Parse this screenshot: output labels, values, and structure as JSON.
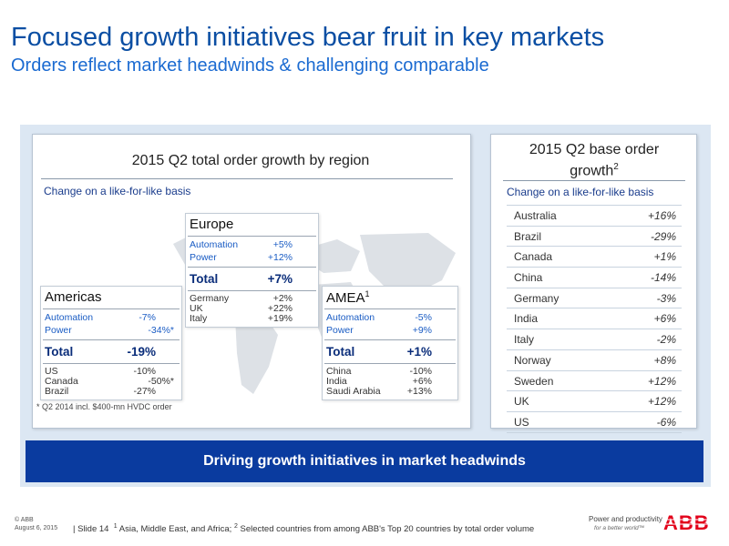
{
  "header": {
    "title": "Focused growth initiatives bear fruit in key markets",
    "subtitle": "Orders reflect market headwinds & challenging comparable"
  },
  "left_panel": {
    "title": "2015 Q2 total order growth by region",
    "note": "Change on a like-for-like basis",
    "footnote": "* Q2 2014 incl. $400-mn HVDC order"
  },
  "regions": {
    "europe": {
      "name": "Europe",
      "segments": [
        {
          "label": "Automation",
          "value": "+5%"
        },
        {
          "label": "Power",
          "value": "+12%"
        }
      ],
      "total": {
        "label": "Total",
        "value": "+7%"
      },
      "countries": [
        {
          "label": "Germany",
          "value": "+2%"
        },
        {
          "label": "UK",
          "value": "+22%"
        },
        {
          "label": "Italy",
          "value": "+19%"
        }
      ]
    },
    "americas": {
      "name": "Americas",
      "segments": [
        {
          "label": "Automation",
          "value": "-7%"
        },
        {
          "label": "Power",
          "value": "-34%*"
        }
      ],
      "total": {
        "label": "Total",
        "value": "-19%"
      },
      "countries": [
        {
          "label": "US",
          "value": "-10%"
        },
        {
          "label": "Canada",
          "value": "-50%*"
        },
        {
          "label": "Brazil",
          "value": "-27%"
        }
      ]
    },
    "amea": {
      "name": "AMEA",
      "name_sup": "1",
      "segments": [
        {
          "label": "Automation",
          "value": "-5%"
        },
        {
          "label": "Power",
          "value": "+9%"
        }
      ],
      "total": {
        "label": "Total",
        "value": "+1%"
      },
      "countries": [
        {
          "label": "China",
          "value": "-10%"
        },
        {
          "label": "India",
          "value": "+6%"
        },
        {
          "label": "Saudi Arabia",
          "value": "+13%"
        }
      ]
    }
  },
  "right_panel": {
    "title": "2015 Q2 base order growth",
    "title_sup": "2",
    "note": "Change on a like-for-like basis",
    "rows": [
      {
        "country": "Australia",
        "value": "+16%"
      },
      {
        "country": "Brazil",
        "value": "-29%"
      },
      {
        "country": "Canada",
        "value": "+1%"
      },
      {
        "country": "China",
        "value": "-14%"
      },
      {
        "country": "Germany",
        "value": "-3%"
      },
      {
        "country": "India",
        "value": "+6%"
      },
      {
        "country": "Italy",
        "value": "-2%"
      },
      {
        "country": "Norway",
        "value": "+8%"
      },
      {
        "country": "Sweden",
        "value": "+12%"
      },
      {
        "country": "UK",
        "value": "+12%"
      },
      {
        "country": "US",
        "value": "-6%"
      }
    ]
  },
  "banner": {
    "text": "Driving growth initiatives in market headwinds"
  },
  "footer": {
    "copyright": "© ABB",
    "date": "August 6, 2015",
    "slide": "| Slide 14",
    "footnote1_marker": "1",
    "footnote1": "Asia,  Middle East, and Africa;",
    "footnote2_marker": "2",
    "footnote2": "Selected countries from among ABB's Top 20 countries by total order volume",
    "tagline": "Power and productivity",
    "tagline2": "for a better world™",
    "logo_text": "ABB",
    "brand_color": "#e2001a"
  },
  "colors": {
    "title": "#0a4ea3",
    "banner": "#0a3b9f",
    "panel_bg": "#dce7f3",
    "segment_text": "#1a5cc4"
  }
}
